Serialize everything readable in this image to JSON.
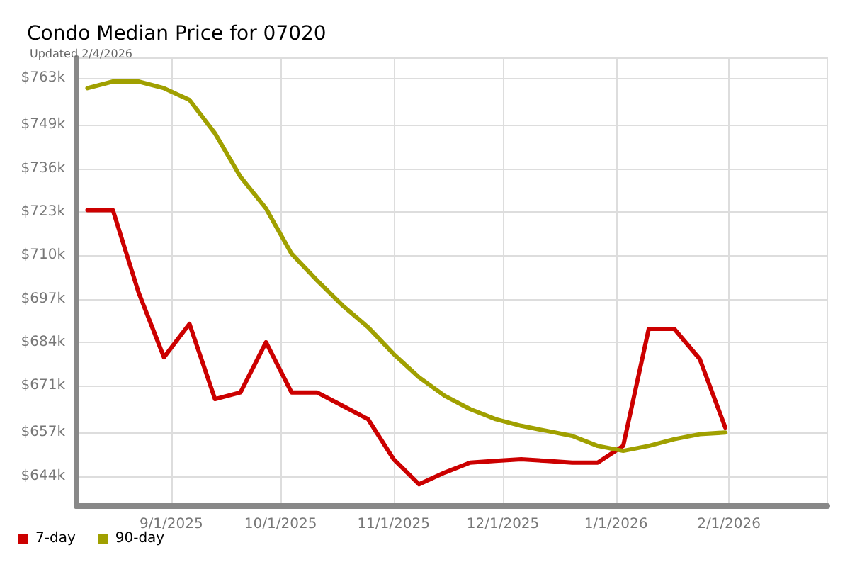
{
  "chart_data": {
    "type": "line",
    "title": "Condo Median Price for 07020",
    "subtitle": "Updated 2/4/2026",
    "x": [
      "2025-08-09",
      "2025-08-16",
      "2025-08-23",
      "2025-08-30",
      "2025-09-06",
      "2025-09-13",
      "2025-09-20",
      "2025-09-27",
      "2025-10-04",
      "2025-10-11",
      "2025-10-18",
      "2025-10-25",
      "2025-11-01",
      "2025-11-08",
      "2025-11-15",
      "2025-11-22",
      "2025-11-29",
      "2025-12-06",
      "2025-12-13",
      "2025-12-20",
      "2025-12-27",
      "2026-01-03",
      "2026-01-10",
      "2026-01-17",
      "2026-01-24",
      "2026-01-31"
    ],
    "series": [
      {
        "name": "7-day",
        "color": "#cc0000",
        "values": [
          723.5,
          723.5,
          699,
          679.5,
          689.5,
          667,
          669,
          684,
          669,
          669,
          665,
          661,
          649,
          641.5,
          645,
          648,
          648.5,
          649,
          648.5,
          648,
          648,
          653,
          688,
          688,
          679,
          658.5
        ]
      },
      {
        "name": "90-day",
        "color": "#a0a000",
        "values": [
          760,
          762,
          762,
          760,
          756.5,
          746.5,
          733.5,
          724,
          710.5,
          702.5,
          695,
          688.5,
          680.5,
          673.5,
          668,
          664,
          661,
          659,
          657.5,
          656,
          653,
          651.5,
          653,
          655,
          656.5,
          657
        ]
      }
    ],
    "xlim": [
      "2025-08-06",
      "2026-02-28"
    ],
    "xticks": [
      {
        "value": "2025-09-01",
        "label": "9/1/2025"
      },
      {
        "value": "2025-10-01",
        "label": "10/1/2025"
      },
      {
        "value": "2025-11-01",
        "label": "11/1/2025"
      },
      {
        "value": "2025-12-01",
        "label": "12/1/2025"
      },
      {
        "value": "2026-01-01",
        "label": "1/1/2026"
      },
      {
        "value": "2026-02-01",
        "label": "2/1/2026"
      }
    ],
    "ylim": [
      635,
      769
    ],
    "yticks": [
      {
        "value": 644,
        "label": "$644k"
      },
      {
        "value": 657,
        "label": "$657k"
      },
      {
        "value": 671,
        "label": "$671k"
      },
      {
        "value": 684,
        "label": "$684k"
      },
      {
        "value": 697,
        "label": "$697k"
      },
      {
        "value": 710,
        "label": "$710k"
      },
      {
        "value": 723,
        "label": "$723k"
      },
      {
        "value": 736,
        "label": "$736k"
      },
      {
        "value": 749,
        "label": "$749k"
      },
      {
        "value": 763,
        "label": "$763k"
      }
    ],
    "grid": true,
    "legend": "bottom left",
    "marker": "none",
    "line_style": "solid"
  }
}
